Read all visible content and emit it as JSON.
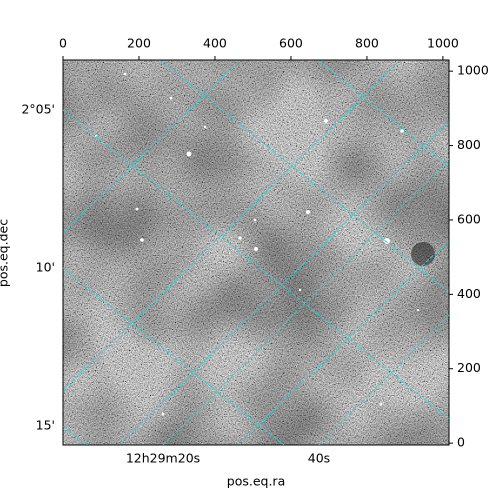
{
  "chart_data": {
    "type": "image",
    "xlabel": "pos.eq.ra",
    "ylabel": "pos.eq.dec",
    "xlim": [
      0,
      1016
    ],
    "ylim": [
      -5,
      1030
    ],
    "xticks": [
      0,
      200,
      400,
      600,
      800,
      1000
    ],
    "y2ticks": [
      0,
      200,
      400,
      600,
      800,
      1000
    ],
    "dec_ticks": [
      "2°05'",
      "10'",
      "15'"
    ],
    "ra_ticks": [
      "12h29m20s",
      "40s"
    ],
    "grid_color": "#2fd3d3"
  }
}
